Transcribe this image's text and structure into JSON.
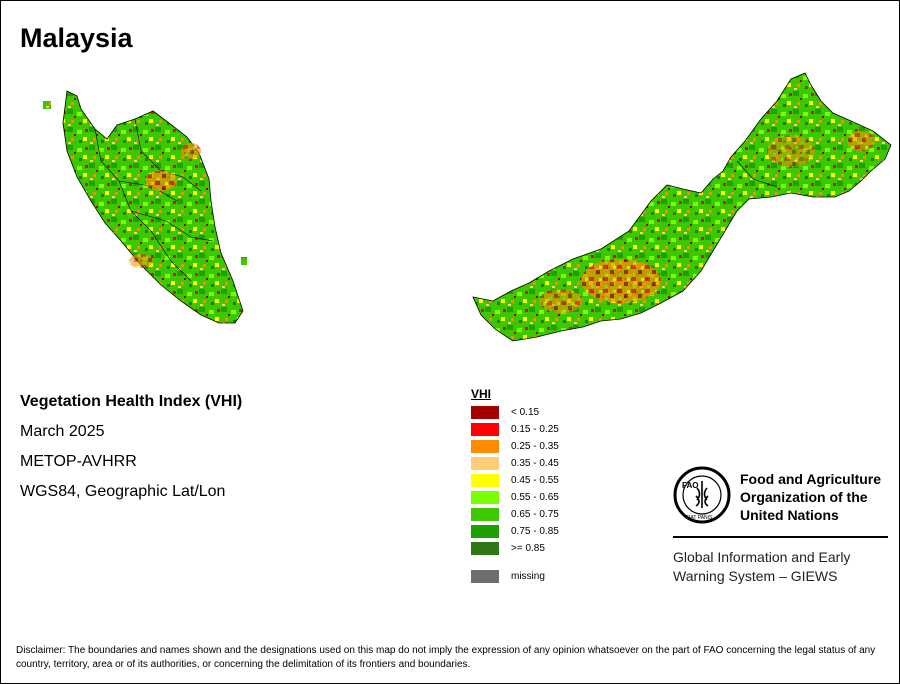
{
  "title": "Malaysia",
  "info": {
    "heading": "Vegetation Health Index (VHI)",
    "date": "March 2025",
    "sensor": "METOP-AVHRR",
    "projection": "WGS84, Geographic Lat/Lon"
  },
  "legend": {
    "title": "VHI",
    "items": [
      {
        "label": "< 0.15",
        "color": "#a50000"
      },
      {
        "label": "0.15 - 0.25",
        "color": "#ff0000"
      },
      {
        "label": "0.25 - 0.35",
        "color": "#ff8c00"
      },
      {
        "label": "0.35 - 0.45",
        "color": "#ffcc78"
      },
      {
        "label": "0.45 - 0.55",
        "color": "#ffff00"
      },
      {
        "label": "0.55 - 0.65",
        "color": "#78ff00"
      },
      {
        "label": "0.65 - 0.75",
        "color": "#3cc800"
      },
      {
        "label": "0.75 - 0.85",
        "color": "#1ea000"
      },
      {
        "label": ">= 0.85",
        "color": "#2d7814"
      }
    ],
    "missing": {
      "label": "missing",
      "color": "#6e6e6e"
    }
  },
  "fao": {
    "logo_text": "FAO",
    "logo_motto": "FIAT PANIS",
    "name_line1": "Food and Agriculture",
    "name_line2": "Organization of the",
    "name_line3": "United Nations",
    "giews_line1": "Global Information and Early",
    "giews_line2": "Warning System – GIEWS"
  },
  "disclaimer": "Disclaimer: The boundaries and names shown and the designations used on this map do not imply the expression of any opinion whatsoever on the part of FAO concerning the legal status of any country, territory, area or of its authorities, or concerning the delimitation of its frontiers and boundaries."
}
